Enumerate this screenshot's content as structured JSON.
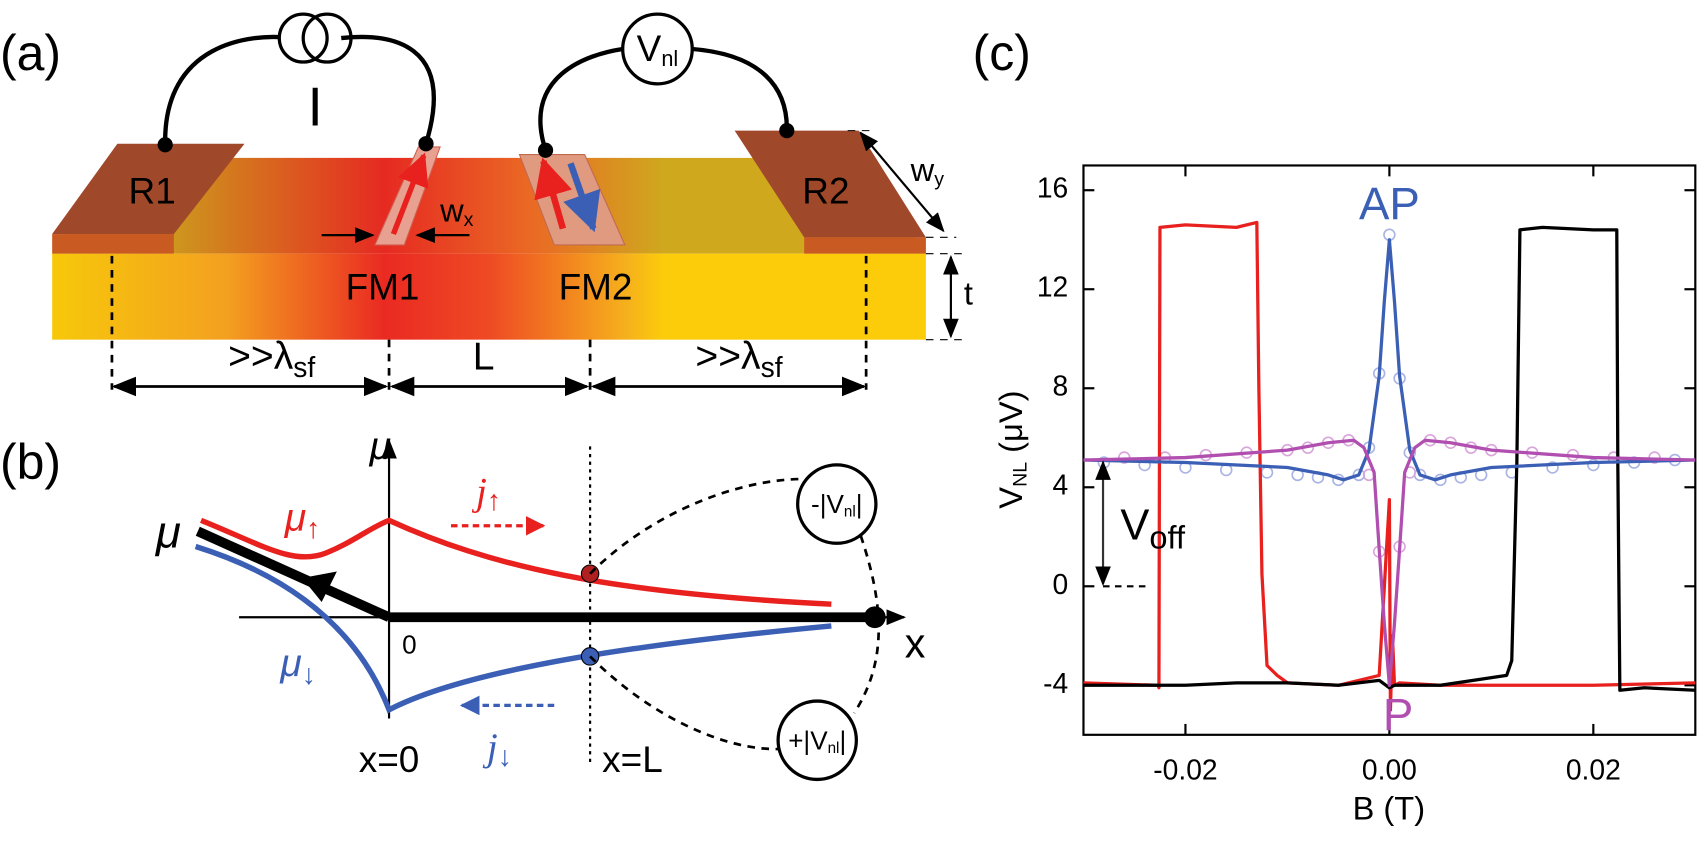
{
  "panel_a": {
    "label": "(a)",
    "current": "I",
    "voltmeter": {
      "main": "V",
      "sub": "nl"
    },
    "contacts": [
      "R1",
      "R2"
    ],
    "ferromagnets": [
      "FM1",
      "FM2"
    ],
    "wx": {
      "main": "w",
      "sub": "x"
    },
    "wy": {
      "main": "w",
      "sub": "y"
    },
    "thickness": "t",
    "dimensions": [
      {
        "main": ">>λ",
        "sub": "sf"
      },
      "L",
      {
        "main": ">>λ",
        "sub": "sf"
      }
    ]
  },
  "panel_b": {
    "label": "(b)",
    "axis_y": "μ",
    "axis_x": "x",
    "mu_left": "μ",
    "mu_up": {
      "main": "μ",
      "sub": "↑"
    },
    "mu_down": {
      "main": "μ",
      "sub": "↓"
    },
    "j_up": {
      "main": "j",
      "sub": "↑"
    },
    "j_down": {
      "main": "j",
      "sub": "↓"
    },
    "origin": "0",
    "x0": "x=0",
    "xL": "x=L",
    "v_minus": {
      "main": "-|V",
      "sub": "nl",
      "end": "|"
    },
    "v_plus": {
      "main": "+|V",
      "sub": "nl",
      "end": "|"
    }
  },
  "chart_data": {
    "type": "line",
    "label": "(c)",
    "x_label": "B (T)",
    "y_label": {
      "main": "V",
      "sub": "NL",
      "unit": " (μV)"
    },
    "xlim": [
      -0.03,
      0.03
    ],
    "xticks": [
      -0.02,
      {
        "value": 0,
        "label": "0.00"
      },
      0.02
    ],
    "ylim": [
      -6,
      17
    ],
    "yticks": [
      -4,
      0,
      4,
      8,
      12,
      16
    ],
    "annotations": {
      "ap": "AP",
      "p": "P",
      "voff": {
        "main": "V",
        "sub": "off"
      }
    },
    "series": [
      {
        "color": "#a9b4e4",
        "style": "open-circles",
        "x": [
          -0.028,
          -0.024,
          -0.02,
          -0.016,
          -0.012,
          -0.009,
          -0.007,
          -0.005,
          -0.003,
          -0.002,
          -0.001,
          0,
          0.001,
          0.002,
          0.003,
          0.005,
          0.007,
          0.009,
          0.012,
          0.016,
          0.02,
          0.024,
          0.028
        ],
        "values": [
          5.0,
          4.9,
          4.8,
          4.7,
          4.6,
          4.5,
          4.4,
          4.3,
          4.5,
          5.6,
          8.6,
          14.2,
          8.4,
          5.4,
          4.5,
          4.3,
          4.4,
          4.5,
          4.6,
          4.8,
          4.9,
          5.0,
          5.1
        ]
      },
      {
        "color": "#d9a6dc",
        "style": "open-circles",
        "x": [
          -0.026,
          -0.022,
          -0.018,
          -0.014,
          -0.01,
          -0.008,
          -0.006,
          -0.004,
          -0.002,
          -0.001,
          0.001,
          0.002,
          0.004,
          0.006,
          0.008,
          0.01,
          0.014,
          0.018,
          0.022,
          0.026
        ],
        "values": [
          5.2,
          5.2,
          5.3,
          5.4,
          5.5,
          5.6,
          5.8,
          5.9,
          4.5,
          1.4,
          1.6,
          4.6,
          5.9,
          5.8,
          5.6,
          5.5,
          5.4,
          5.3,
          5.2,
          5.2
        ]
      },
      {
        "color": "#e8201e",
        "style": "line",
        "x": [
          -0.03,
          -0.0227,
          -0.0226,
          -0.0225,
          -0.02,
          -0.015,
          -0.013,
          -0.0128,
          -0.0125,
          -0.012,
          -0.011,
          -0.01,
          -0.005,
          -0.001,
          0,
          0.0001,
          0.0003,
          0.0005,
          0.001,
          0.005,
          0.02,
          0.03
        ],
        "values": [
          -3.9,
          -4.0,
          -4.1,
          14.5,
          14.6,
          14.5,
          14.7,
          8,
          0.5,
          -3.2,
          -3.6,
          -3.9,
          -4.0,
          -3.6,
          3.5,
          -5.0,
          -2,
          -4.0,
          -3.9,
          -4.0,
          -4.0,
          -3.9
        ]
      },
      {
        "color": "#000000",
        "style": "line",
        "x": [
          -0.03,
          -0.02,
          -0.015,
          -0.01,
          -0.005,
          -0.001,
          0,
          0.0005,
          0.005,
          0.0115,
          0.012,
          0.0125,
          0.0128,
          0.015,
          0.02,
          0.0223,
          0.0224,
          0.0226,
          0.025,
          0.03
        ],
        "values": [
          -4.0,
          -4.0,
          -3.9,
          -3.9,
          -4.0,
          -3.8,
          -4.1,
          -4.0,
          -4.0,
          -3.6,
          -3.0,
          5,
          14.4,
          14.5,
          14.4,
          14.4,
          5,
          -4.2,
          -4.1,
          -4.2
        ]
      },
      {
        "color": "#3a5fb5",
        "style": "line",
        "x": [
          -0.03,
          -0.02,
          -0.01,
          -0.006,
          -0.0045,
          -0.003,
          -0.002,
          -0.001,
          -0.0005,
          0,
          0.0005,
          0.001,
          0.002,
          0.003,
          0.0045,
          0.006,
          0.01,
          0.02,
          0.03
        ],
        "values": [
          5.1,
          5.0,
          4.8,
          4.5,
          4.3,
          4.5,
          5.5,
          8.5,
          11.5,
          14.0,
          11.5,
          8.5,
          5.5,
          4.5,
          4.3,
          4.5,
          4.8,
          5.0,
          5.1
        ]
      },
      {
        "color": "#b04fb0",
        "style": "line",
        "x": [
          -0.03,
          -0.02,
          -0.01,
          -0.006,
          -0.0035,
          -0.0025,
          -0.0015,
          -0.001,
          -0.0005,
          0,
          0.0005,
          0.001,
          0.0015,
          0.0025,
          0.0035,
          0.006,
          0.01,
          0.02,
          0.03
        ],
        "values": [
          5.1,
          5.2,
          5.5,
          5.8,
          5.9,
          5.6,
          4.6,
          1.5,
          -1.5,
          -4.0,
          -1.5,
          1.5,
          4.6,
          5.6,
          5.9,
          5.8,
          5.5,
          5.2,
          5.1
        ]
      }
    ]
  }
}
